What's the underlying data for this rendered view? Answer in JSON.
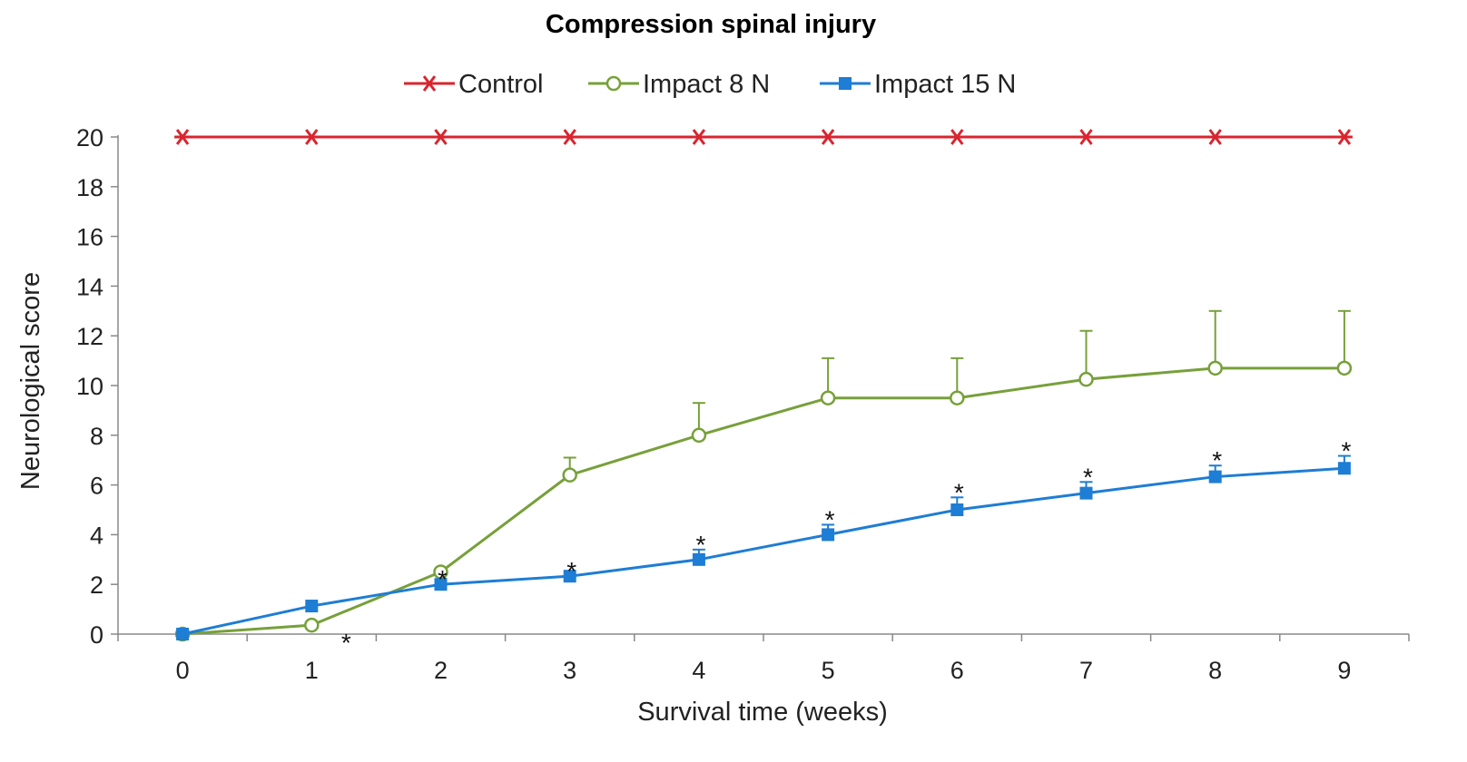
{
  "chart_data": {
    "type": "line",
    "title": "Compression spinal injury",
    "xlabel": "Survival time (weeks)",
    "ylabel": "Neurological score",
    "ylim": [
      0,
      20
    ],
    "yticks": [
      "0",
      "2",
      "4",
      "6",
      "8",
      "10",
      "12",
      "14",
      "16",
      "18",
      "20"
    ],
    "categories": [
      "0",
      "1",
      "2",
      "3",
      "4",
      "5",
      "6",
      "7",
      "8",
      "9"
    ],
    "legend_position": "top-center",
    "series": [
      {
        "name": "Control",
        "color": "#d9252f",
        "marker": "star",
        "values": [
          20,
          20,
          20,
          20,
          20,
          20,
          20,
          20,
          20,
          20
        ],
        "error_upper": null
      },
      {
        "name": "Impact 8 N",
        "color": "#77a03a",
        "marker": "open-circle",
        "values": [
          0,
          0.36,
          2.5,
          6.4,
          8.0,
          9.5,
          9.5,
          10.25,
          10.7,
          10.7
        ],
        "error_upper": [
          0,
          0,
          0,
          0.7,
          1.3,
          1.6,
          1.6,
          1.95,
          2.3,
          2.3
        ]
      },
      {
        "name": "Impact 15 N",
        "color": "#1e7dd4",
        "marker": "square",
        "values": [
          0,
          1.13,
          2.0,
          2.33,
          3.0,
          4.0,
          5.0,
          5.67,
          6.33,
          6.67
        ],
        "error_upper": [
          0,
          0,
          0,
          0,
          0.4,
          0.4,
          0.5,
          0.45,
          0.45,
          0.5
        ]
      }
    ],
    "annotations": {
      "significance_marker": "*",
      "at_categories": [
        "1",
        "2",
        "3",
        "4",
        "5",
        "6",
        "7",
        "8",
        "9"
      ]
    }
  }
}
